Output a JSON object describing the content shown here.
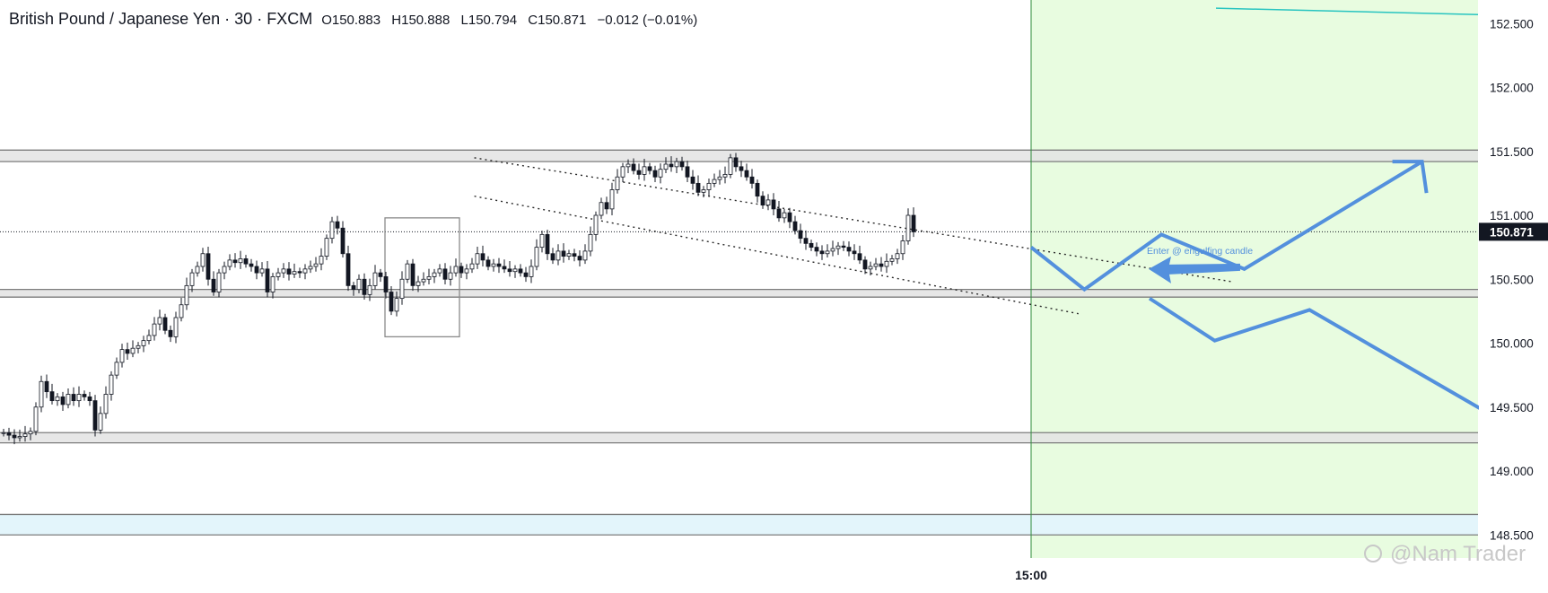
{
  "legend": {
    "symbol": "British Pound / Japanese Yen · 30 · FXCM",
    "open_label": "O",
    "open": "150.883",
    "high_label": "H",
    "high": "150.888",
    "low_label": "L",
    "low": "150.794",
    "close_label": "C",
    "close": "150.871",
    "change": "−0.012 (−0.01%)"
  },
  "watermark": "@Nam Trader",
  "annotation": "Enter @ engulfing candle",
  "colors": {
    "projection_zone": "#e8fce0",
    "zone_gray": "#e3e3e3",
    "zone_blue": "#e3f5fb",
    "arrow": "#5390dd",
    "price_label_bg": "#131722",
    "candle": "#131722",
    "vertical_line": "#2e8b3a"
  },
  "chart_data": {
    "type": "candlestick",
    "ylim": [
      148.45,
      152.6
    ],
    "y_ticks": [
      "152.500",
      "152.000",
      "151.500",
      "151.000",
      "150.500",
      "150.000",
      "149.500",
      "149.000",
      "148.500"
    ],
    "x_tick_labels": [
      "15:00"
    ],
    "current_price_label": "150.871",
    "current_price": 150.871,
    "horizontal_zones": [
      {
        "from": 151.42,
        "to": 151.51,
        "color": "gray"
      },
      {
        "from": 150.36,
        "to": 150.42,
        "color": "gray"
      },
      {
        "from": 149.22,
        "to": 149.3,
        "color": "gray"
      },
      {
        "from": 148.5,
        "to": 148.66,
        "color": "blue"
      }
    ],
    "close_series": [
      149.3,
      149.28,
      149.26,
      149.27,
      149.29,
      149.31,
      149.5,
      149.7,
      149.62,
      149.55,
      149.58,
      149.52,
      149.6,
      149.55,
      149.6,
      149.58,
      149.55,
      149.32,
      149.45,
      149.6,
      149.75,
      149.85,
      149.95,
      149.92,
      149.96,
      149.98,
      150.02,
      150.06,
      150.15,
      150.2,
      150.1,
      150.05,
      150.2,
      150.3,
      150.45,
      150.55,
      150.6,
      150.7,
      150.5,
      150.4,
      150.55,
      150.6,
      150.65,
      150.63,
      150.66,
      150.62,
      150.6,
      150.55,
      150.58,
      150.4,
      150.52,
      150.55,
      150.58,
      150.54,
      150.56,
      150.55,
      150.58,
      150.6,
      150.62,
      150.68,
      150.82,
      150.95,
      150.9,
      150.7,
      150.45,
      150.42,
      150.5,
      150.38,
      150.45,
      150.55,
      150.52,
      150.4,
      150.25,
      150.35,
      150.5,
      150.62,
      150.45,
      150.48,
      150.5,
      150.52,
      150.55,
      150.58,
      150.5,
      150.55,
      150.6,
      150.55,
      150.58,
      150.62,
      150.7,
      150.65,
      150.6,
      150.62,
      150.6,
      150.58,
      150.56,
      150.58,
      150.55,
      150.52,
      150.6,
      150.75,
      150.85,
      150.7,
      150.65,
      150.72,
      150.68,
      150.7,
      150.68,
      150.65,
      150.72,
      150.85,
      151.0,
      151.1,
      151.05,
      151.2,
      151.3,
      151.38,
      151.4,
      151.35,
      151.32,
      151.38,
      151.35,
      151.3,
      151.36,
      151.4,
      151.38,
      151.42,
      151.38,
      151.3,
      151.25,
      151.18,
      151.2,
      151.25,
      151.28,
      151.3,
      151.32,
      151.45,
      151.38,
      151.35,
      151.3,
      151.25,
      151.15,
      151.08,
      151.12,
      151.05,
      150.98,
      151.02,
      150.95,
      150.88,
      150.82,
      150.78,
      150.75,
      150.72,
      150.7,
      150.72,
      150.74,
      150.76,
      150.75,
      150.72,
      150.7,
      150.65,
      150.58,
      150.6,
      150.62,
      150.6,
      150.64,
      150.66,
      150.7,
      150.8,
      151.0,
      150.871
    ],
    "projections": [
      {
        "name": "bullish path",
        "points": [
          [
            0,
            150.75
          ],
          [
            9,
            150.42
          ],
          [
            22,
            150.85
          ],
          [
            36,
            150.58
          ],
          [
            66,
            151.42
          ]
        ]
      },
      {
        "name": "bearish path",
        "points": [
          [
            20,
            150.35
          ],
          [
            31,
            150.02
          ],
          [
            47,
            150.26
          ],
          [
            84,
            149.27
          ]
        ]
      }
    ],
    "channel_lines": [
      {
        "points": [
          [
            -94,
            151.45
          ],
          [
            34,
            150.48
          ]
        ]
      },
      {
        "points": [
          [
            -94,
            151.15
          ],
          [
            8,
            150.23
          ]
        ]
      }
    ],
    "highlight_box": {
      "price_top": 150.98,
      "price_bottom": 150.05
    },
    "trendline_top": {
      "from_price": 152.62,
      "to_price": 152.57
    }
  }
}
